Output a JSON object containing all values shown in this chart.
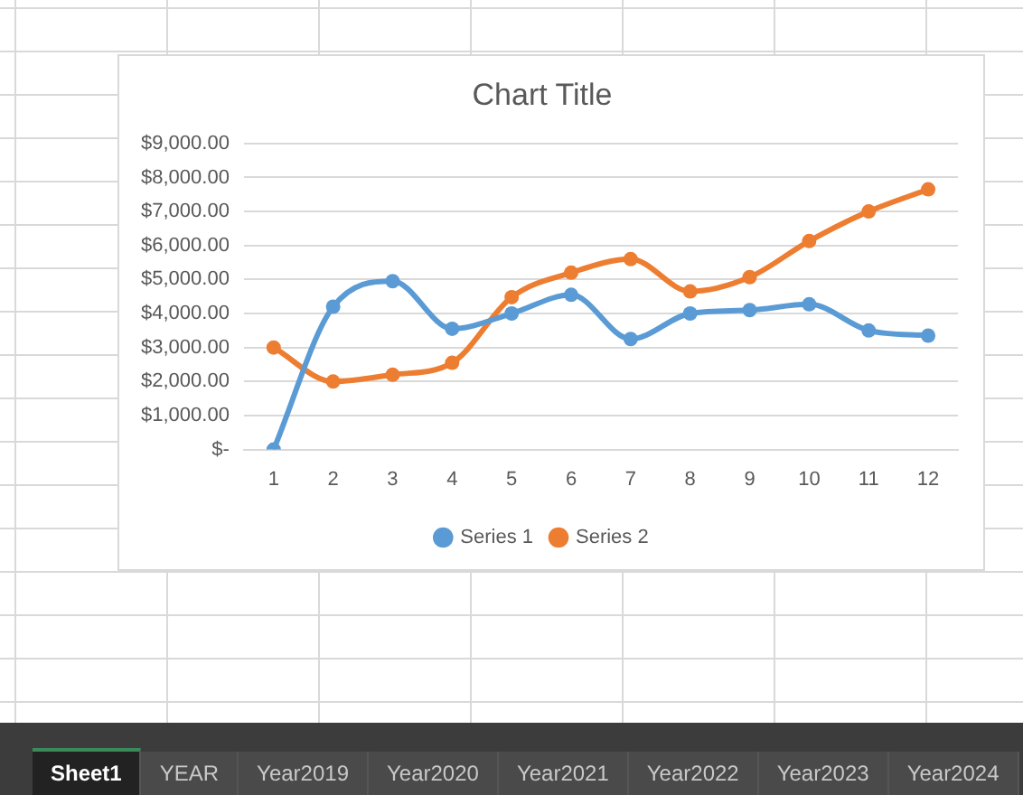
{
  "chart_data": {
    "type": "line",
    "title": "Chart Title",
    "x": [
      1,
      2,
      3,
      4,
      5,
      6,
      7,
      8,
      9,
      10,
      11,
      12
    ],
    "xlim": [
      0.5,
      12.5
    ],
    "xticks": [
      1,
      2,
      3,
      4,
      5,
      6,
      7,
      8,
      9,
      10,
      11,
      12
    ],
    "series": [
      {
        "name": "Series 1",
        "color": "#5b9bd5",
        "values": [
          0,
          4200,
          4950,
          3550,
          4000,
          4550,
          3250,
          4000,
          4100,
          4270,
          3500,
          3350
        ]
      },
      {
        "name": "Series 2",
        "color": "#ed7d31",
        "values": [
          3000,
          2000,
          2200,
          2550,
          4480,
          5200,
          5600,
          4650,
          5070,
          6130,
          7000,
          7650
        ]
      }
    ],
    "ylim": [
      0,
      9000
    ],
    "yticks": [
      {
        "value": 0,
        "label": "$-"
      },
      {
        "value": 1000,
        "label": "$1,000.00"
      },
      {
        "value": 2000,
        "label": "$2,000.00"
      },
      {
        "value": 3000,
        "label": "$3,000.00"
      },
      {
        "value": 4000,
        "label": "$4,000.00"
      },
      {
        "value": 5000,
        "label": "$5,000.00"
      },
      {
        "value": 6000,
        "label": "$6,000.00"
      },
      {
        "value": 7000,
        "label": "$7,000.00"
      },
      {
        "value": 8000,
        "label": "$8,000.00"
      },
      {
        "value": 9000,
        "label": "$9,000.00"
      }
    ],
    "grid": "y",
    "legend": "bottom",
    "marker": "circle",
    "line_style": "solid",
    "annotations": [
      "Sheet1",
      "YEAR",
      "Year2019",
      "Year2020",
      "Year2021",
      "Year2022",
      "Year2023",
      "Year2024"
    ]
  }
}
